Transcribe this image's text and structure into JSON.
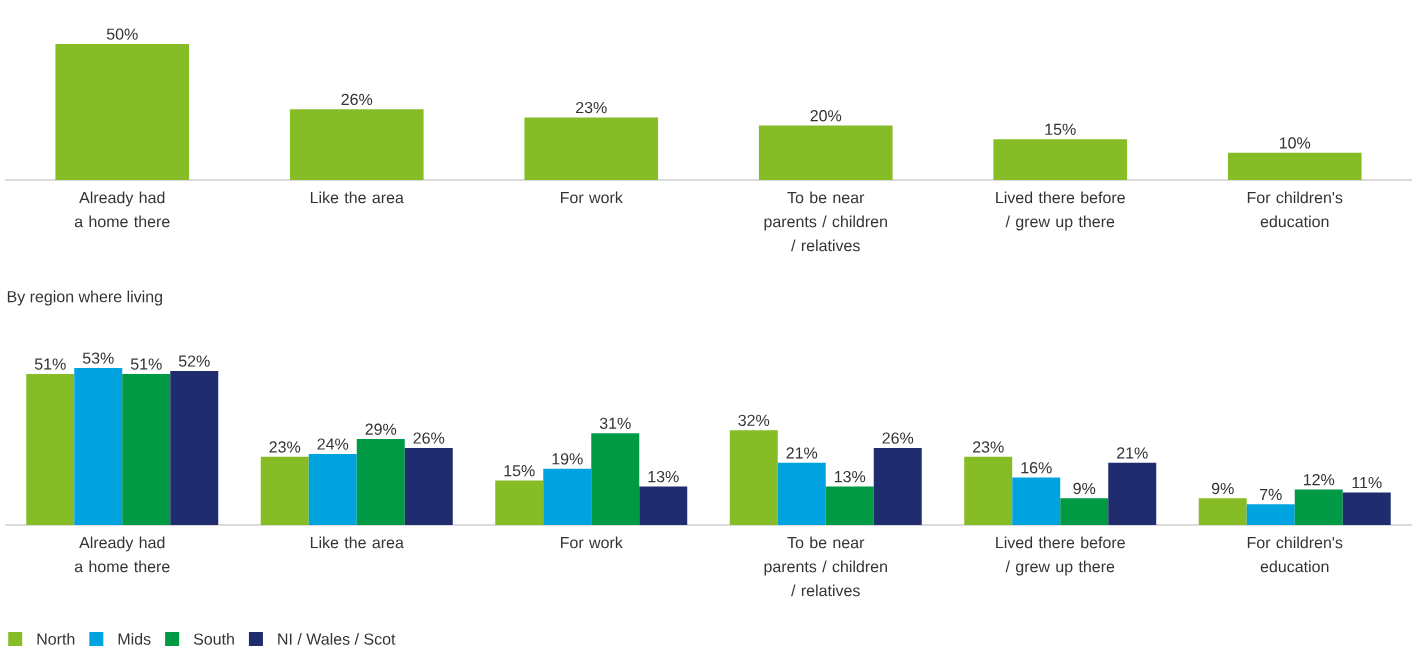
{
  "chart_data": [
    {
      "type": "bar",
      "categories": [
        "Already had a home there",
        "Like the area",
        "For work",
        "To be near parents / children / relatives",
        "Lived there before / grew up there",
        "For children's education"
      ],
      "values": [
        50,
        26,
        23,
        20,
        15,
        10
      ],
      "color": "#86bc25",
      "value_labels": [
        "50%",
        "26%",
        "23%",
        "20%",
        "15%",
        "10%"
      ],
      "legend": false
    },
    {
      "type": "bar",
      "title": "By region where living",
      "categories": [
        "Already had a home there",
        "Like the area",
        "For work",
        "To be near parents / children / relatives",
        "Lived there before / grew up there",
        "For children's education"
      ],
      "series": [
        {
          "name": "North",
          "color": "#86bc25",
          "values": [
            51,
            23,
            15,
            32,
            23,
            9
          ],
          "value_labels": [
            "51%",
            "23%",
            "15%",
            "32%",
            "23%",
            "9%"
          ]
        },
        {
          "name": "Mids",
          "color": "#00a3e0",
          "values": [
            53,
            24,
            19,
            21,
            16,
            7
          ],
          "value_labels": [
            "53%",
            "24%",
            "19%",
            "21%",
            "16%",
            "7%"
          ]
        },
        {
          "name": "South",
          "color": "#009a44",
          "values": [
            51,
            29,
            31,
            13,
            9,
            12
          ],
          "value_labels": [
            "51%",
            "29%",
            "31%",
            "13%",
            "9%",
            "12%"
          ]
        },
        {
          "name": "NI / Wales / Scot",
          "color": "#1f2d6e",
          "values": [
            52,
            26,
            13,
            26,
            21,
            11
          ],
          "value_labels": [
            "52%",
            "26%",
            "13%",
            "26%",
            "21%",
            "11%"
          ]
        }
      ],
      "legend": "bottom left"
    }
  ]
}
